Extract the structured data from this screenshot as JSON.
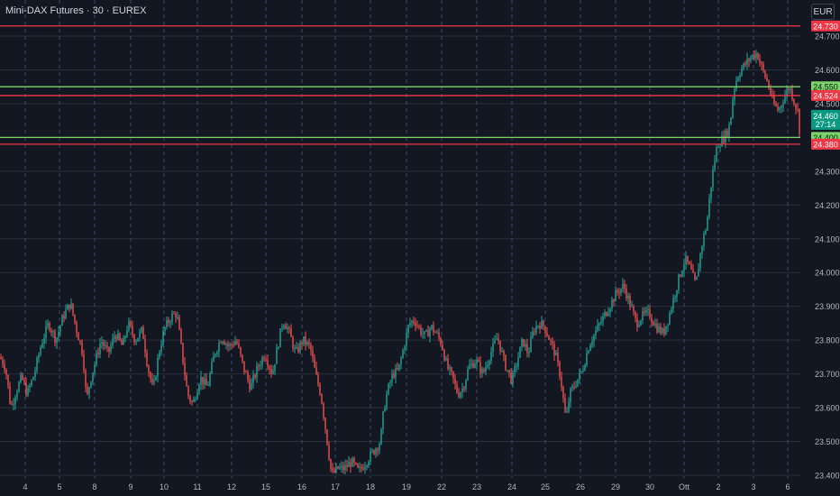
{
  "header": {
    "title": "Mini-DAX Futures · 30 · EUREX"
  },
  "currency_button": "EUR",
  "colors": {
    "background": "#131722",
    "grid": "#2a2e39",
    "vgrid_dash": "#3a4a6b",
    "up": "#26a69a",
    "down": "#ef5350",
    "support_line": "#7bd36b",
    "resistance_line": "#f23645",
    "axis_text": "#b2b5be",
    "price_badge": "#089981"
  },
  "chart_data": {
    "type": "candlestick",
    "title": "Mini-DAX Futures · 30 · EUREX",
    "ylim": [
      23400,
      24740
    ],
    "y_ticks": [
      "24.700",
      "24.600",
      "24.500",
      "24.400",
      "24.300",
      "24.200",
      "24.100",
      "24.000",
      "23.900",
      "23.800",
      "23.700",
      "23.600",
      "23.500",
      "23.400"
    ],
    "x_ticks": [
      "4",
      "5",
      "8",
      "9",
      "10",
      "11",
      "12",
      "15",
      "16",
      "17",
      "18",
      "19",
      "22",
      "23",
      "24",
      "25",
      "26",
      "29",
      "30",
      "Ott",
      "2",
      "3",
      "6"
    ],
    "price_path": [
      [
        0,
        23750
      ],
      [
        6,
        23720
      ],
      [
        12,
        23600
      ],
      [
        18,
        23650
      ],
      [
        24,
        23690
      ],
      [
        30,
        23640
      ],
      [
        38,
        23700
      ],
      [
        46,
        23790
      ],
      [
        54,
        23850
      ],
      [
        62,
        23800
      ],
      [
        70,
        23870
      ],
      [
        78,
        23910
      ],
      [
        85,
        23830
      ],
      [
        92,
        23760
      ],
      [
        96,
        23620
      ],
      [
        100,
        23680
      ],
      [
        106,
        23740
      ],
      [
        112,
        23800
      ],
      [
        120,
        23760
      ],
      [
        128,
        23820
      ],
      [
        136,
        23780
      ],
      [
        142,
        23850
      ],
      [
        150,
        23800
      ],
      [
        158,
        23830
      ],
      [
        164,
        23720
      ],
      [
        170,
        23650
      ],
      [
        176,
        23760
      ],
      [
        182,
        23830
      ],
      [
        190,
        23870
      ],
      [
        196,
        23880
      ],
      [
        202,
        23760
      ],
      [
        208,
        23640
      ],
      [
        214,
        23610
      ],
      [
        222,
        23690
      ],
      [
        230,
        23660
      ],
      [
        238,
        23760
      ],
      [
        246,
        23810
      ],
      [
        254,
        23780
      ],
      [
        262,
        23800
      ],
      [
        270,
        23720
      ],
      [
        278,
        23660
      ],
      [
        286,
        23720
      ],
      [
        294,
        23760
      ],
      [
        302,
        23700
      ],
      [
        308,
        23780
      ],
      [
        314,
        23860
      ],
      [
        320,
        23830
      ],
      [
        328,
        23760
      ],
      [
        336,
        23800
      ],
      [
        344,
        23780
      ],
      [
        350,
        23700
      ],
      [
        356,
        23640
      ],
      [
        362,
        23520
      ],
      [
        368,
        23400
      ],
      [
        375,
        23420
      ],
      [
        382,
        23420
      ],
      [
        390,
        23440
      ],
      [
        398,
        23410
      ],
      [
        406,
        23440
      ],
      [
        414,
        23470
      ],
      [
        422,
        23500
      ],
      [
        426,
        23600
      ],
      [
        430,
        23650
      ],
      [
        436,
        23700
      ],
      [
        442,
        23710
      ],
      [
        448,
        23780
      ],
      [
        454,
        23850
      ],
      [
        460,
        23860
      ],
      [
        466,
        23830
      ],
      [
        472,
        23810
      ],
      [
        478,
        23840
      ],
      [
        484,
        23820
      ],
      [
        490,
        23790
      ],
      [
        496,
        23720
      ],
      [
        502,
        23690
      ],
      [
        508,
        23640
      ],
      [
        514,
        23660
      ],
      [
        520,
        23720
      ],
      [
        528,
        23740
      ],
      [
        536,
        23700
      ],
      [
        544,
        23760
      ],
      [
        552,
        23810
      ],
      [
        560,
        23730
      ],
      [
        568,
        23680
      ],
      [
        574,
        23740
      ],
      [
        580,
        23800
      ],
      [
        586,
        23760
      ],
      [
        592,
        23830
      ],
      [
        598,
        23850
      ],
      [
        604,
        23840
      ],
      [
        610,
        23800
      ],
      [
        616,
        23760
      ],
      [
        622,
        23690
      ],
      [
        628,
        23560
      ],
      [
        632,
        23640
      ],
      [
        638,
        23670
      ],
      [
        646,
        23710
      ],
      [
        654,
        23790
      ],
      [
        660,
        23820
      ],
      [
        668,
        23860
      ],
      [
        676,
        23900
      ],
      [
        684,
        23940
      ],
      [
        692,
        23960
      ],
      [
        700,
        23900
      ],
      [
        706,
        23850
      ],
      [
        712,
        23870
      ],
      [
        720,
        23880
      ],
      [
        728,
        23840
      ],
      [
        736,
        23820
      ],
      [
        742,
        23870
      ],
      [
        748,
        23930
      ],
      [
        754,
        23990
      ],
      [
        760,
        24040
      ],
      [
        766,
        24010
      ],
      [
        772,
        23960
      ],
      [
        776,
        24040
      ],
      [
        780,
        24100
      ],
      [
        784,
        24140
      ],
      [
        788,
        24240
      ],
      [
        792,
        24320
      ],
      [
        796,
        24380
      ],
      [
        800,
        24390
      ],
      [
        806,
        24410
      ],
      [
        810,
        24440
      ],
      [
        814,
        24540
      ],
      [
        818,
        24580
      ],
      [
        822,
        24600
      ],
      [
        828,
        24620
      ],
      [
        834,
        24640
      ],
      [
        840,
        24650
      ],
      [
        846,
        24600
      ],
      [
        852,
        24560
      ],
      [
        858,
        24500
      ],
      [
        864,
        24480
      ],
      [
        870,
        24520
      ],
      [
        876,
        24550
      ],
      [
        882,
        24500
      ],
      [
        886,
        24470
      ],
      [
        888,
        24380
      ]
    ],
    "last_price": "24.460",
    "countdown": "27:14",
    "horizontal_lines": [
      {
        "price": 24730,
        "label": "24.730",
        "color": "#f23645"
      },
      {
        "price": 24550,
        "label": "24.550",
        "color": "#7bd36b"
      },
      {
        "price": 24524,
        "label": "24.524",
        "color": "#f23645"
      },
      {
        "price": 24400,
        "label": "24.400",
        "color": "#7bd36b"
      },
      {
        "price": 24380,
        "label": "24.380",
        "color": "#f23645"
      }
    ]
  }
}
